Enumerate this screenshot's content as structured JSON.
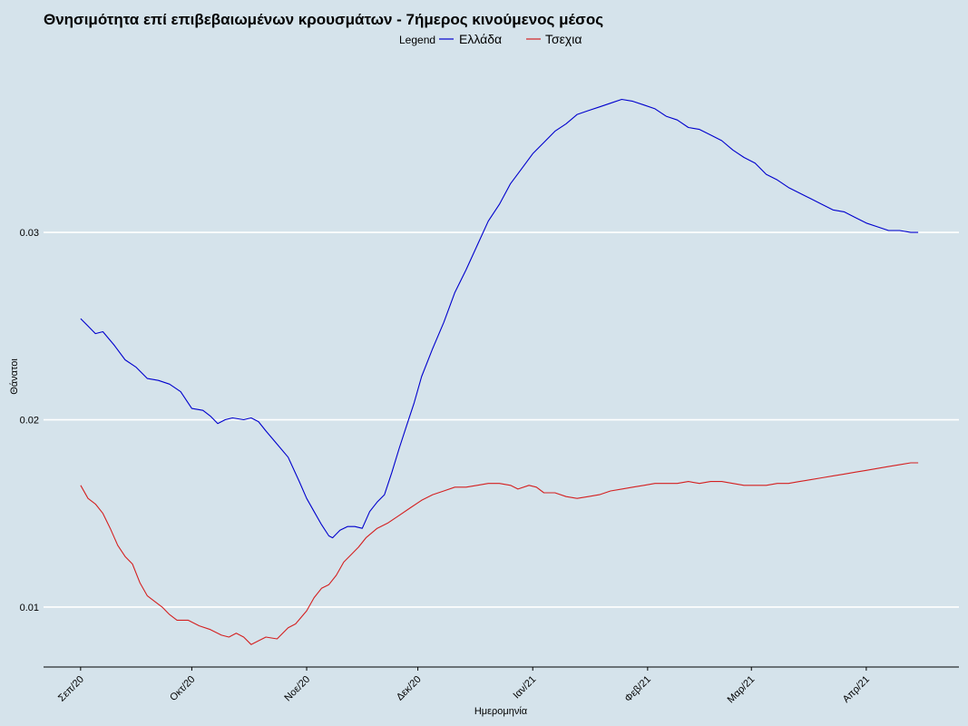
{
  "chart_data": {
    "type": "line",
    "title": "Θνησιμότητα επί επιβεβαιωμένων κρουσμάτων - 7ήμερος κινούμενος μέσος",
    "xlabel": "Ημερομηνία",
    "ylabel": "Θάνατοι",
    "legend": {
      "title": "Legend",
      "position": "top",
      "entries": [
        "Ελλάδα",
        "Τσεχια"
      ]
    },
    "x_ticks": [
      {
        "label": "Σεπ/20",
        "date": "2020-09-01"
      },
      {
        "label": "Οκτ/20",
        "date": "2020-10-01"
      },
      {
        "label": "Νοε/20",
        "date": "2020-11-01"
      },
      {
        "label": "Δεκ/20",
        "date": "2020-12-01"
      },
      {
        "label": "Ιαν/21",
        "date": "2021-01-01"
      },
      {
        "label": "Φεβ/21",
        "date": "2021-02-01"
      },
      {
        "label": "Μαρ/21",
        "date": "2021-03-01"
      },
      {
        "label": "Απρ/21",
        "date": "2021-04-01"
      }
    ],
    "y_ticks": [
      {
        "label": "0.01",
        "value": 0.01
      },
      {
        "label": "0.02",
        "value": 0.02
      },
      {
        "label": "0.03",
        "value": 0.03
      }
    ],
    "xlim": [
      "2020-08-22",
      "2021-04-26"
    ],
    "ylim": [
      0.0068,
      0.0395
    ],
    "grid": "horizontal-major",
    "series": [
      {
        "name": "Ελλάδα",
        "color": "#0000cd",
        "points": [
          [
            "2020-09-01",
            0.0254
          ],
          [
            "2020-09-03",
            0.025
          ],
          [
            "2020-09-05",
            0.0246
          ],
          [
            "2020-09-07",
            0.0247
          ],
          [
            "2020-09-10",
            0.024
          ],
          [
            "2020-09-13",
            0.0232
          ],
          [
            "2020-09-16",
            0.0228
          ],
          [
            "2020-09-19",
            0.0222
          ],
          [
            "2020-09-22",
            0.0221
          ],
          [
            "2020-09-25",
            0.0219
          ],
          [
            "2020-09-28",
            0.0215
          ],
          [
            "2020-10-01",
            0.0206
          ],
          [
            "2020-10-04",
            0.0205
          ],
          [
            "2020-10-06",
            0.0202
          ],
          [
            "2020-10-08",
            0.0198
          ],
          [
            "2020-10-10",
            0.02
          ],
          [
            "2020-10-12",
            0.0201
          ],
          [
            "2020-10-15",
            0.02
          ],
          [
            "2020-10-17",
            0.0201
          ],
          [
            "2020-10-19",
            0.0199
          ],
          [
            "2020-10-21",
            0.0194
          ],
          [
            "2020-10-24",
            0.0187
          ],
          [
            "2020-10-27",
            0.018
          ],
          [
            "2020-10-30",
            0.0167
          ],
          [
            "2020-11-01",
            0.0158
          ],
          [
            "2020-11-03",
            0.0151
          ],
          [
            "2020-11-05",
            0.0144
          ],
          [
            "2020-11-07",
            0.0138
          ],
          [
            "2020-11-08",
            0.0137
          ],
          [
            "2020-11-10",
            0.0141
          ],
          [
            "2020-11-12",
            0.0143
          ],
          [
            "2020-11-14",
            0.0143
          ],
          [
            "2020-11-16",
            0.0142
          ],
          [
            "2020-11-18",
            0.0151
          ],
          [
            "2020-11-20",
            0.0156
          ],
          [
            "2020-11-22",
            0.016
          ],
          [
            "2020-11-24",
            0.0172
          ],
          [
            "2020-11-26",
            0.0185
          ],
          [
            "2020-11-28",
            0.0197
          ],
          [
            "2020-11-30",
            0.0209
          ],
          [
            "2020-12-02",
            0.0223
          ],
          [
            "2020-12-05",
            0.0238
          ],
          [
            "2020-12-08",
            0.0252
          ],
          [
            "2020-12-11",
            0.0268
          ],
          [
            "2020-12-14",
            0.028
          ],
          [
            "2020-12-17",
            0.0293
          ],
          [
            "2020-12-20",
            0.0306
          ],
          [
            "2020-12-23",
            0.0315
          ],
          [
            "2020-12-26",
            0.0326
          ],
          [
            "2020-12-29",
            0.0334
          ],
          [
            "2021-01-01",
            0.0342
          ],
          [
            "2021-01-04",
            0.0348
          ],
          [
            "2021-01-07",
            0.0354
          ],
          [
            "2021-01-10",
            0.0358
          ],
          [
            "2021-01-13",
            0.0363
          ],
          [
            "2021-01-16",
            0.0365
          ],
          [
            "2021-01-19",
            0.0367
          ],
          [
            "2021-01-22",
            0.0369
          ],
          [
            "2021-01-25",
            0.0371
          ],
          [
            "2021-01-28",
            0.037
          ],
          [
            "2021-01-31",
            0.0368
          ],
          [
            "2021-02-03",
            0.0366
          ],
          [
            "2021-02-06",
            0.0362
          ],
          [
            "2021-02-09",
            0.036
          ],
          [
            "2021-02-12",
            0.0356
          ],
          [
            "2021-02-15",
            0.0355
          ],
          [
            "2021-02-18",
            0.0352
          ],
          [
            "2021-02-21",
            0.0349
          ],
          [
            "2021-02-24",
            0.0344
          ],
          [
            "2021-02-27",
            0.034
          ],
          [
            "2021-03-02",
            0.0337
          ],
          [
            "2021-03-05",
            0.0331
          ],
          [
            "2021-03-08",
            0.0328
          ],
          [
            "2021-03-11",
            0.0324
          ],
          [
            "2021-03-14",
            0.0321
          ],
          [
            "2021-03-17",
            0.0318
          ],
          [
            "2021-03-20",
            0.0315
          ],
          [
            "2021-03-23",
            0.0312
          ],
          [
            "2021-03-26",
            0.0311
          ],
          [
            "2021-03-29",
            0.0308
          ],
          [
            "2021-04-01",
            0.0305
          ],
          [
            "2021-04-04",
            0.0303
          ],
          [
            "2021-04-07",
            0.0301
          ],
          [
            "2021-04-10",
            0.0301
          ],
          [
            "2021-04-13",
            0.03
          ],
          [
            "2021-04-15",
            0.03
          ]
        ]
      },
      {
        "name": "Τσεχια",
        "color": "#d42020",
        "points": [
          [
            "2020-09-01",
            0.0165
          ],
          [
            "2020-09-03",
            0.0158
          ],
          [
            "2020-09-05",
            0.0155
          ],
          [
            "2020-09-07",
            0.015
          ],
          [
            "2020-09-09",
            0.0142
          ],
          [
            "2020-09-11",
            0.0133
          ],
          [
            "2020-09-13",
            0.0127
          ],
          [
            "2020-09-15",
            0.0123
          ],
          [
            "2020-09-17",
            0.0113
          ],
          [
            "2020-09-19",
            0.0106
          ],
          [
            "2020-09-21",
            0.0103
          ],
          [
            "2020-09-23",
            0.01
          ],
          [
            "2020-09-25",
            0.0096
          ],
          [
            "2020-09-27",
            0.0093
          ],
          [
            "2020-09-30",
            0.0093
          ],
          [
            "2020-10-03",
            0.009
          ],
          [
            "2020-10-06",
            0.0088
          ],
          [
            "2020-10-09",
            0.0085
          ],
          [
            "2020-10-11",
            0.0084
          ],
          [
            "2020-10-13",
            0.0086
          ],
          [
            "2020-10-15",
            0.0084
          ],
          [
            "2020-10-17",
            0.008
          ],
          [
            "2020-10-19",
            0.0082
          ],
          [
            "2020-10-21",
            0.0084
          ],
          [
            "2020-10-24",
            0.0083
          ],
          [
            "2020-10-27",
            0.0089
          ],
          [
            "2020-10-29",
            0.0091
          ],
          [
            "2020-11-01",
            0.0098
          ],
          [
            "2020-11-03",
            0.0105
          ],
          [
            "2020-11-05",
            0.011
          ],
          [
            "2020-11-07",
            0.0112
          ],
          [
            "2020-11-09",
            0.0117
          ],
          [
            "2020-11-11",
            0.0124
          ],
          [
            "2020-11-13",
            0.0128
          ],
          [
            "2020-11-15",
            0.0132
          ],
          [
            "2020-11-17",
            0.0137
          ],
          [
            "2020-11-20",
            0.0142
          ],
          [
            "2020-11-23",
            0.0145
          ],
          [
            "2020-11-26",
            0.0149
          ],
          [
            "2020-11-29",
            0.0153
          ],
          [
            "2020-12-02",
            0.0157
          ],
          [
            "2020-12-05",
            0.016
          ],
          [
            "2020-12-08",
            0.0162
          ],
          [
            "2020-12-11",
            0.0164
          ],
          [
            "2020-12-14",
            0.0164
          ],
          [
            "2020-12-17",
            0.0165
          ],
          [
            "2020-12-20",
            0.0166
          ],
          [
            "2020-12-23",
            0.0166
          ],
          [
            "2020-12-26",
            0.0165
          ],
          [
            "2020-12-28",
            0.0163
          ],
          [
            "2020-12-31",
            0.0165
          ],
          [
            "2021-01-02",
            0.0164
          ],
          [
            "2021-01-04",
            0.0161
          ],
          [
            "2021-01-07",
            0.0161
          ],
          [
            "2021-01-10",
            0.0159
          ],
          [
            "2021-01-13",
            0.0158
          ],
          [
            "2021-01-16",
            0.0159
          ],
          [
            "2021-01-19",
            0.016
          ],
          [
            "2021-01-22",
            0.0162
          ],
          [
            "2021-01-25",
            0.0163
          ],
          [
            "2021-01-28",
            0.0164
          ],
          [
            "2021-01-31",
            0.0165
          ],
          [
            "2021-02-03",
            0.0166
          ],
          [
            "2021-02-06",
            0.0166
          ],
          [
            "2021-02-09",
            0.0166
          ],
          [
            "2021-02-12",
            0.0167
          ],
          [
            "2021-02-15",
            0.0166
          ],
          [
            "2021-02-18",
            0.0167
          ],
          [
            "2021-02-21",
            0.0167
          ],
          [
            "2021-02-24",
            0.0166
          ],
          [
            "2021-02-27",
            0.0165
          ],
          [
            "2021-03-02",
            0.0165
          ],
          [
            "2021-03-05",
            0.0165
          ],
          [
            "2021-03-08",
            0.0166
          ],
          [
            "2021-03-11",
            0.0166
          ],
          [
            "2021-03-14",
            0.0167
          ],
          [
            "2021-03-17",
            0.0168
          ],
          [
            "2021-03-20",
            0.0169
          ],
          [
            "2021-03-23",
            0.017
          ],
          [
            "2021-03-26",
            0.0171
          ],
          [
            "2021-03-29",
            0.0172
          ],
          [
            "2021-04-01",
            0.0173
          ],
          [
            "2021-04-04",
            0.0174
          ],
          [
            "2021-04-07",
            0.0175
          ],
          [
            "2021-04-10",
            0.0176
          ],
          [
            "2021-04-13",
            0.0177
          ],
          [
            "2021-04-15",
            0.0177
          ]
        ]
      }
    ]
  }
}
